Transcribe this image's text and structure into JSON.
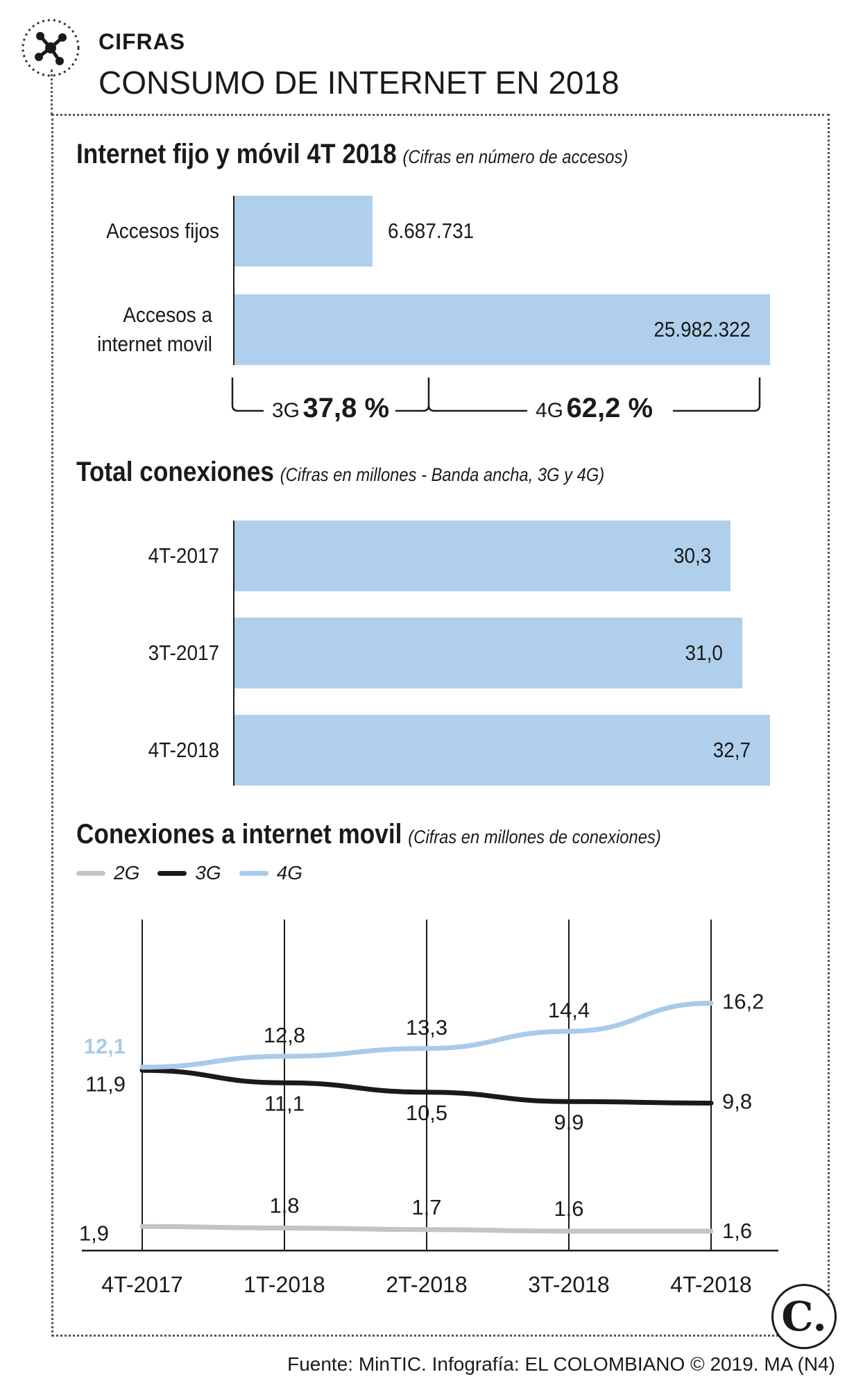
{
  "header": {
    "kicker": "CIFRAS",
    "title": "CONSUMO DE INTERNET EN 2018"
  },
  "section1": {
    "title": "Internet fijo y móvil 4T 2018",
    "note": "(Cifras en número de accesos)",
    "split": {
      "g3_label": "3G",
      "g3_value": "37,8 %",
      "g4_label": "4G",
      "g4_value": "62,2 %"
    }
  },
  "section2": {
    "title": "Total conexiones",
    "note": "(Cifras en millones - Banda ancha, 3G y 4G)"
  },
  "section3": {
    "title": "Conexiones a internet movil",
    "note": "(Cifras en millones de conexiones)"
  },
  "footer": {
    "source": "Fuente: MinTIC. Infografía: EL COLOMBIANO © 2019. MA (N4)",
    "logo": "C."
  },
  "colors": {
    "bar": "#b0cfec",
    "line_4g": "#a9cbea",
    "line_3g": "#1a1a1a",
    "line_2g": "#c4c4c4",
    "text": "#1a1a1a"
  },
  "chart_data": [
    {
      "type": "bar",
      "orientation": "horizontal",
      "categories": [
        "Accesos fijos",
        "Accesos a internet movil"
      ],
      "values": [
        6687731,
        25982322
      ],
      "value_labels": [
        "6.687.731",
        "25.982.322"
      ],
      "title": "Internet fijo y móvil 4T 2018",
      "subtitle": "(Cifras en número de accesos)",
      "annotations": [
        "3G 37,8 %",
        "4G 62,2 %"
      ]
    },
    {
      "type": "bar",
      "orientation": "horizontal",
      "categories": [
        "4T-2017",
        "3T-2017",
        "4T-2018"
      ],
      "values": [
        30.3,
        31.0,
        32.7
      ],
      "value_labels": [
        "30,3",
        "31,0",
        "32,7"
      ],
      "title": "Total conexiones",
      "subtitle": "(Cifras en millones - Banda ancha, 3G y 4G)"
    },
    {
      "type": "line",
      "title": "Conexiones a internet movil",
      "subtitle": "(Cifras en millones de conexiones)",
      "x": [
        "4T-2017",
        "1T-2018",
        "2T-2018",
        "3T-2018",
        "4T-2018"
      ],
      "series": [
        {
          "name": "2G",
          "values": [
            1.9,
            1.8,
            1.7,
            1.6,
            1.6
          ],
          "labels": [
            "1,9",
            "1,8",
            "1,7",
            "1,6",
            "1,6"
          ]
        },
        {
          "name": "3G",
          "values": [
            11.9,
            11.1,
            10.5,
            9.9,
            9.8
          ],
          "labels": [
            "11,9",
            "11,1",
            "10,5",
            "9,9",
            "9,8"
          ]
        },
        {
          "name": "4G",
          "values": [
            12.1,
            12.8,
            13.3,
            14.4,
            16.2
          ],
          "labels": [
            "12,1",
            "12,8",
            "13,3",
            "14,4",
            "16,2"
          ]
        }
      ],
      "legend": "top-left",
      "grid": "vertical"
    }
  ]
}
